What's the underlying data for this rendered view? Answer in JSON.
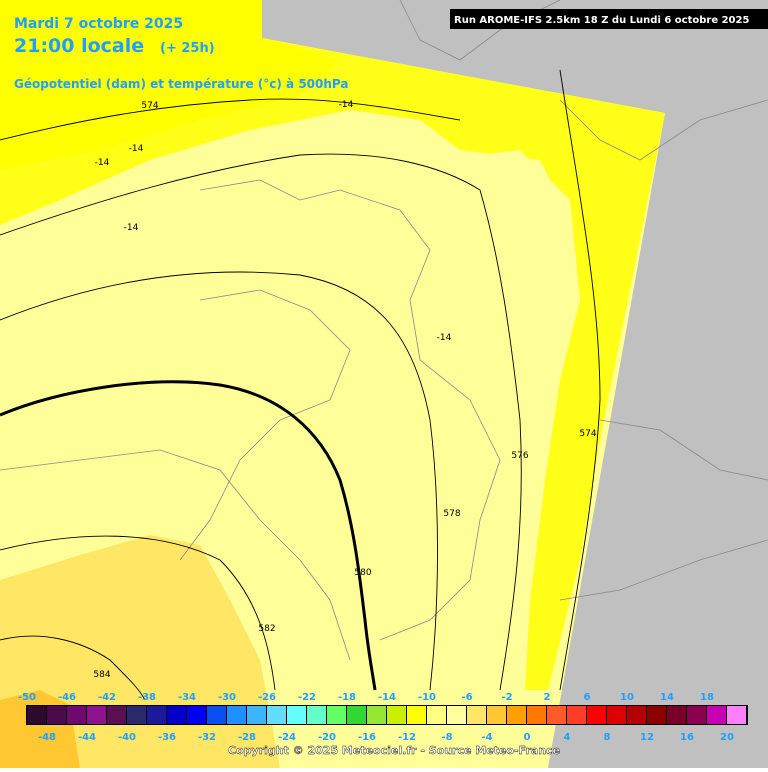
{
  "header": {
    "date": "Mardi 7 octobre 2025",
    "time": "21:00 locale",
    "lead": "(+ 25h)",
    "field": "Géopotentiel (dam) et température (°c) à 500hPa",
    "run": "Run AROME-IFS 2.5km 18 Z du Lundi 6 octobre 2025"
  },
  "contour_labels": [
    "574",
    "-14",
    "-14",
    "-14",
    "-14",
    "-14",
    "576",
    "578",
    "580",
    "582",
    "584",
    "574"
  ],
  "colorbar": {
    "top_labels": [
      -50,
      -46,
      -42,
      -38,
      -34,
      -30,
      -26,
      -22,
      -18,
      -14,
      -10,
      -6,
      -2,
      2,
      6,
      10,
      14,
      18
    ],
    "bottom_labels": [
      -48,
      -44,
      -40,
      -36,
      -32,
      -28,
      -24,
      -20,
      -16,
      -12,
      -8,
      -4,
      0,
      4,
      8,
      12,
      16,
      20
    ],
    "colors": [
      "#2d0a2d",
      "#4b0a4b",
      "#6e0a6e",
      "#8c148c",
      "#5a1050",
      "#2a2a6a",
      "#1a1a9a",
      "#0000c8",
      "#0000f0",
      "#0a50f0",
      "#1e90ff",
      "#3cb4ff",
      "#64dcff",
      "#64ffff",
      "#64ffc8",
      "#64ff64",
      "#32d732",
      "#96e632",
      "#c8f000",
      "#ffff00",
      "#ffff82",
      "#ffffa0",
      "#ffe664",
      "#ffc832",
      "#ffa000",
      "#ff7800",
      "#ff5a28",
      "#ff3c28",
      "#ff0000",
      "#dc0000",
      "#b40000",
      "#8c0000",
      "#780028",
      "#8c0050",
      "#c800b4",
      "#ff80ff"
    ]
  },
  "copyright": "Copyright © 2025 Meteociel.fr - Source Meteo-France"
}
